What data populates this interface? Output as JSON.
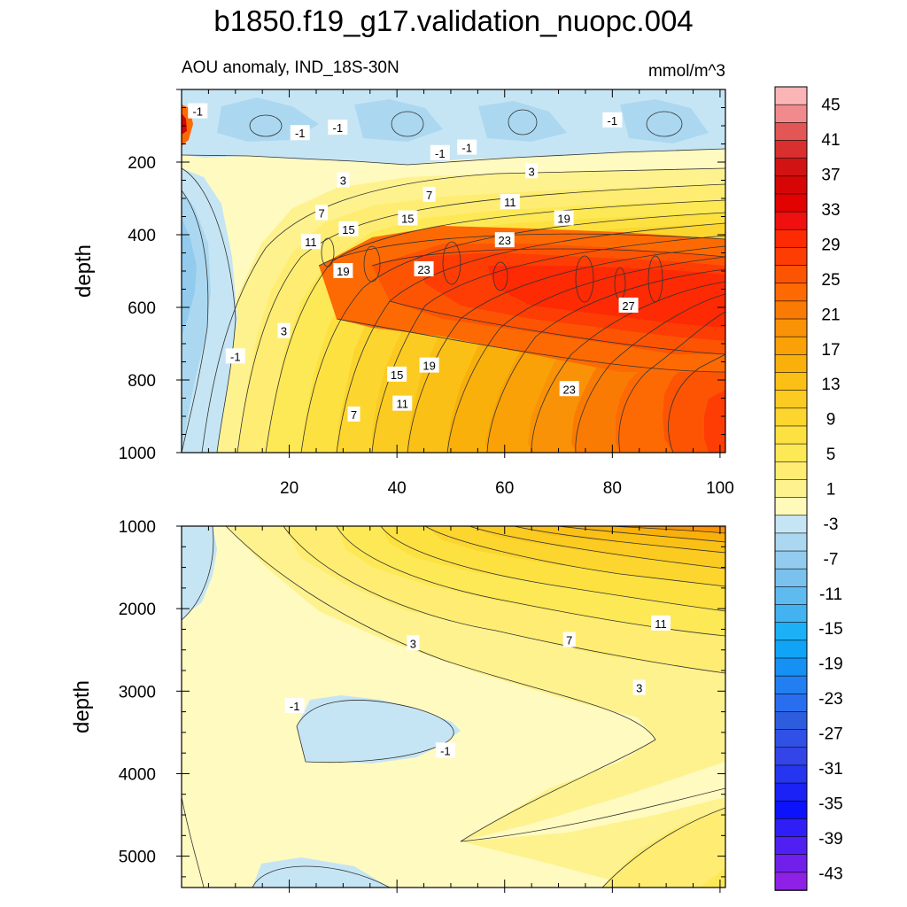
{
  "title": "b1850.f19_g17.validation_nuopc.004",
  "subtitle_left": "AOU anomaly, IND_18S-30N",
  "subtitle_right": "mmol/m^3",
  "chart_data": {
    "type": "contour",
    "x_ticks": [
      "20",
      "40",
      "60",
      "80",
      "100"
    ],
    "x_values": [
      20,
      40,
      60,
      80,
      100
    ],
    "xlim": [
      0,
      101
    ],
    "colorbar": {
      "labels": [
        "45",
        "41",
        "37",
        "33",
        "29",
        "25",
        "21",
        "17",
        "13",
        "9",
        "5",
        "1",
        "-3",
        "-7",
        "-11",
        "-15",
        "-19",
        "-23",
        "-27",
        "-31",
        "-35",
        "-39",
        "-43"
      ],
      "colors": [
        "#fbb5b6",
        "#f08a8c",
        "#e35656",
        "#d92f2f",
        "#d21313",
        "#d70606",
        "#e20202",
        "#f01010",
        "#fd2a04",
        "#fd3d04",
        "#fd5404",
        "#fd6a04",
        "#fa7b04",
        "#f99206",
        "#f9a106",
        "#f9b00b",
        "#fac016",
        "#fbcb21",
        "#fcd52f",
        "#fde141",
        "#fde856",
        "#feed72",
        "#fef28f",
        "#fffaba",
        "#c6e5f4",
        "#abd8f0",
        "#93cbee",
        "#7bc1ee",
        "#5fbbef",
        "#42b3f0",
        "#1cb0f6",
        "#10a4f7",
        "#1591f4",
        "#227ff1",
        "#2a6ef0",
        "#2d5ddd",
        "#3050e6",
        "#3345e8",
        "#2535f0",
        "#1a22f5",
        "#0d12fc",
        "#2f1ff6",
        "#5020f3",
        "#7020ea",
        "#8f20e6"
      ],
      "range": [
        -45,
        47
      ]
    },
    "panels": [
      {
        "name": "upper",
        "ylabel": "depth",
        "y_ticks": [
          "200",
          "400",
          "600",
          "800",
          "1000"
        ],
        "y_values": [
          200,
          400,
          600,
          800,
          1000
        ],
        "ylim": [
          1000,
          0
        ],
        "contour_labels": [
          {
            "text": "-1",
            "x": 3,
            "y": 60
          },
          {
            "text": "-1",
            "x": 22,
            "y": 120
          },
          {
            "text": "-1",
            "x": 29,
            "y": 105
          },
          {
            "text": "-1",
            "x": 10,
            "y": 735
          },
          {
            "text": "-1",
            "x": 53,
            "y": 160
          },
          {
            "text": "-1",
            "x": 48,
            "y": 175
          },
          {
            "text": "-1",
            "x": 80,
            "y": 85
          },
          {
            "text": "3",
            "x": 30,
            "y": 250
          },
          {
            "text": "3",
            "x": 65,
            "y": 225
          },
          {
            "text": "3",
            "x": 19,
            "y": 665
          },
          {
            "text": "7",
            "x": 26,
            "y": 340
          },
          {
            "text": "7",
            "x": 46,
            "y": 290
          },
          {
            "text": "7",
            "x": 32,
            "y": 895
          },
          {
            "text": "11",
            "x": 61,
            "y": 310
          },
          {
            "text": "11",
            "x": 24,
            "y": 420
          },
          {
            "text": "11",
            "x": 41,
            "y": 865
          },
          {
            "text": "15",
            "x": 42,
            "y": 355
          },
          {
            "text": "15",
            "x": 31,
            "y": 385
          },
          {
            "text": "15",
            "x": 40,
            "y": 785
          },
          {
            "text": "19",
            "x": 71,
            "y": 355
          },
          {
            "text": "19",
            "x": 30,
            "y": 500
          },
          {
            "text": "19",
            "x": 46,
            "y": 760
          },
          {
            "text": "23",
            "x": 60,
            "y": 415
          },
          {
            "text": "23",
            "x": 45,
            "y": 495
          },
          {
            "text": "23",
            "x": 72,
            "y": 825
          },
          {
            "text": "27",
            "x": 83,
            "y": 595
          }
        ]
      },
      {
        "name": "lower",
        "ylabel": "depth",
        "y_ticks": [
          "1000",
          "2000",
          "3000",
          "4000",
          "5000"
        ],
        "y_values": [
          1000,
          2000,
          3000,
          4000,
          5000
        ],
        "ylim": [
          5380,
          1000
        ],
        "contour_labels": [
          {
            "text": "3",
            "x": 43,
            "y": 2420
          },
          {
            "text": "3",
            "x": 85,
            "y": 2960
          },
          {
            "text": "7",
            "x": 72,
            "y": 2380
          },
          {
            "text": "11",
            "x": 89,
            "y": 2180
          },
          {
            "text": "-1",
            "x": 21,
            "y": 3180
          },
          {
            "text": "-1",
            "x": 49,
            "y": 3720
          }
        ]
      }
    ]
  }
}
